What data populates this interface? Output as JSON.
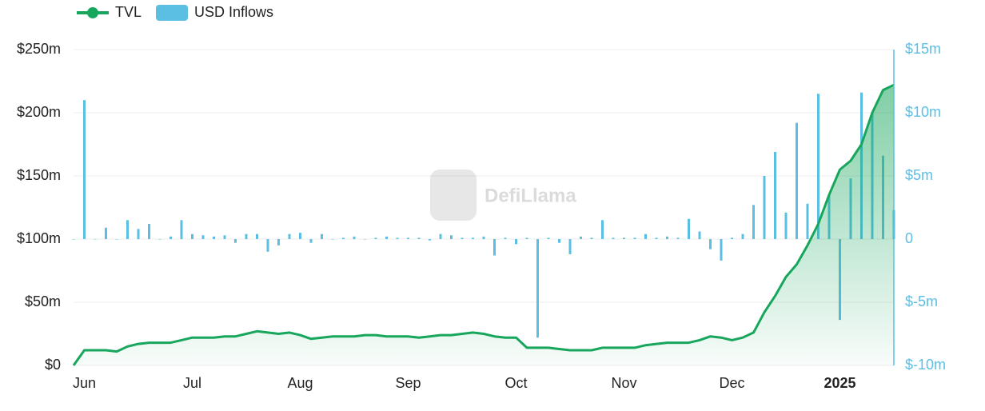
{
  "chart_data": {
    "type": "line-bar",
    "watermark": "DefiLlama",
    "categories": [
      null,
      "Jun",
      null,
      null,
      null,
      null,
      null,
      null,
      null,
      null,
      null,
      "Jul",
      null,
      null,
      null,
      null,
      null,
      null,
      null,
      null,
      null,
      "Aug",
      null,
      null,
      null,
      null,
      null,
      null,
      null,
      null,
      null,
      "Sep",
      null,
      null,
      null,
      null,
      null,
      null,
      null,
      null,
      null,
      "Oct",
      null,
      null,
      null,
      null,
      null,
      null,
      null,
      null,
      null,
      "Nov",
      null,
      null,
      null,
      null,
      null,
      null,
      null,
      null,
      null,
      "Dec",
      null,
      null,
      null,
      null,
      null,
      null,
      null,
      null,
      null,
      "2025",
      null,
      null,
      null,
      null,
      null
    ],
    "series": [
      {
        "name": "TVL",
        "type": "line",
        "color": "#17a65c",
        "axis": "y",
        "values": [
          0,
          12,
          12,
          12,
          11,
          15,
          17,
          18,
          18,
          18,
          20,
          22,
          22,
          22,
          23,
          23,
          25,
          27,
          26,
          25,
          26,
          24,
          21,
          22,
          23,
          23,
          23,
          24,
          24,
          23,
          23,
          23,
          22,
          23,
          24,
          24,
          25,
          26,
          25,
          23,
          22,
          22,
          14,
          14,
          14,
          13,
          12,
          12,
          12,
          14,
          14,
          14,
          14,
          16,
          17,
          18,
          18,
          18,
          20,
          23,
          22,
          20,
          22,
          26,
          42,
          55,
          70,
          80,
          95,
          112,
          135,
          155,
          162,
          175,
          200,
          218,
          222
        ]
      },
      {
        "name": "USD Inflows",
        "type": "bar",
        "color": "#5bbfe3",
        "axis": "y2",
        "values": [
          0,
          11,
          0,
          0.9,
          0,
          1.5,
          0.8,
          1.2,
          0,
          0.2,
          1.5,
          0.4,
          0.3,
          0.2,
          0.3,
          -0.3,
          0.4,
          0.4,
          -1,
          -0.5,
          0.4,
          0.5,
          -0.3,
          0.4,
          0,
          0.1,
          0.2,
          0,
          0.1,
          0.2,
          0.1,
          0.1,
          0.1,
          -0.1,
          0.4,
          0.3,
          0.1,
          0.1,
          0.2,
          -1.3,
          0.1,
          -0.4,
          0.1,
          -7.8,
          0.1,
          -0.3,
          -1.2,
          0.2,
          0.1,
          1.5,
          0.1,
          0.1,
          0.1,
          0.4,
          0.1,
          0.2,
          0.1,
          1.6,
          0.6,
          -0.8,
          -1.7,
          0.1,
          0.4,
          2.7,
          5,
          6.9,
          2.1,
          9.2,
          2.8,
          11.5,
          3.5,
          -6.4,
          4.8,
          11.6,
          10,
          6.6,
          2.3
        ]
      }
    ],
    "ylim": [
      0,
      250
    ],
    "yticks": [
      {
        "value": 0,
        "label": "$0"
      },
      {
        "value": 50,
        "label": "$50m"
      },
      {
        "value": 100,
        "label": "$100m"
      },
      {
        "value": 150,
        "label": "$150m"
      },
      {
        "value": 200,
        "label": "$200m"
      },
      {
        "value": 250,
        "label": "$250m"
      }
    ],
    "y2lim": [
      -10,
      15
    ],
    "y2ticks": [
      {
        "value": -10,
        "label": "$-10m"
      },
      {
        "value": -5,
        "label": "$-5m"
      },
      {
        "value": 0,
        "label": "0"
      },
      {
        "value": 5,
        "label": "$5m"
      },
      {
        "value": 10,
        "label": "$10m"
      },
      {
        "value": 15,
        "label": "$15m"
      }
    ],
    "grid": true
  }
}
